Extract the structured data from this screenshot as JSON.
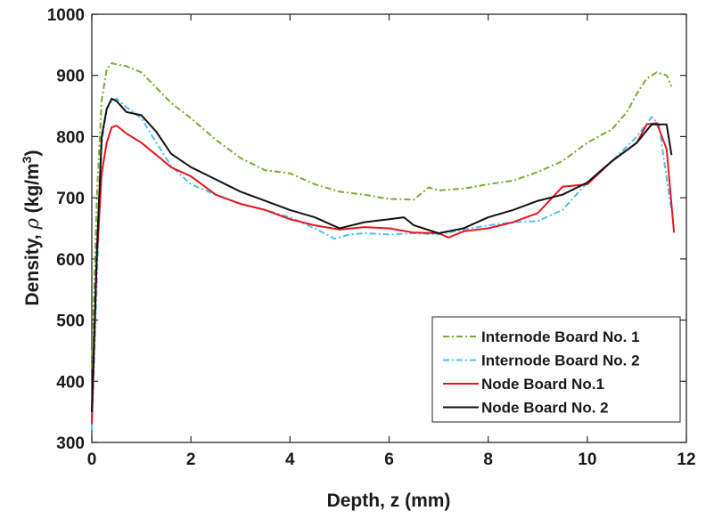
{
  "chart_data": {
    "type": "line",
    "xlabel": "Depth, z (mm)",
    "ylabel_parts": {
      "main": "Density, ",
      "symbol": "ρ",
      "unit": " (kg/m",
      "sup": "3",
      "close": ")"
    },
    "xlim": [
      0,
      12
    ],
    "ylim": [
      300,
      1000
    ],
    "x_ticks": [
      0,
      2,
      4,
      6,
      8,
      10,
      12
    ],
    "y_ticks": [
      300,
      400,
      500,
      600,
      700,
      800,
      900,
      1000
    ],
    "grid": false,
    "legend_position": "lower-right",
    "series": [
      {
        "name": "Internode Board No. 1",
        "color": "#77ac30",
        "dash": "7,3,2,3",
        "x": [
          0,
          0.1,
          0.2,
          0.3,
          0.4,
          0.5,
          0.7,
          1.0,
          1.3,
          1.6,
          2.0,
          2.5,
          3.0,
          3.5,
          4.0,
          4.5,
          5.0,
          5.5,
          6.0,
          6.5,
          6.8,
          7.0,
          7.5,
          8.0,
          8.5,
          9.0,
          9.5,
          10.0,
          10.5,
          10.8,
          11.0,
          11.2,
          11.4,
          11.6,
          11.7
        ],
        "y": [
          420,
          700,
          860,
          910,
          920,
          918,
          915,
          905,
          880,
          855,
          830,
          795,
          765,
          745,
          740,
          722,
          710,
          705,
          698,
          697,
          717,
          712,
          715,
          722,
          728,
          742,
          760,
          790,
          812,
          840,
          870,
          895,
          905,
          900,
          882
        ]
      },
      {
        "name": "Internode Board No. 2",
        "color": "#4dbeee",
        "dash": "7,3,2,3",
        "x": [
          0,
          0.1,
          0.2,
          0.3,
          0.4,
          0.5,
          0.7,
          1.0,
          1.3,
          1.6,
          2.0,
          2.5,
          3.0,
          3.5,
          4.0,
          4.5,
          4.9,
          5.2,
          5.5,
          6.0,
          6.5,
          7.0,
          7.5,
          8.0,
          8.5,
          9.0,
          9.5,
          10.0,
          10.5,
          11.0,
          11.3,
          11.45,
          11.55,
          11.7
        ],
        "y": [
          320,
          560,
          790,
          845,
          858,
          862,
          848,
          830,
          790,
          752,
          722,
          705,
          690,
          680,
          668,
          650,
          633,
          640,
          642,
          640,
          642,
          640,
          648,
          655,
          660,
          662,
          680,
          725,
          760,
          800,
          832,
          820,
          760,
          680
        ]
      },
      {
        "name": "Node Board No.1",
        "color": "#e8141b",
        "dash": "",
        "x": [
          0,
          0.1,
          0.2,
          0.3,
          0.4,
          0.5,
          0.7,
          1.0,
          1.3,
          1.6,
          2.0,
          2.5,
          3.0,
          3.5,
          4.0,
          4.5,
          5.0,
          5.5,
          6.0,
          6.5,
          7.0,
          7.2,
          7.5,
          8.0,
          8.5,
          9.0,
          9.5,
          10.0,
          10.5,
          11.0,
          11.2,
          11.4,
          11.6,
          11.75
        ],
        "y": [
          330,
          600,
          740,
          790,
          815,
          818,
          805,
          790,
          770,
          750,
          735,
          705,
          690,
          680,
          665,
          655,
          648,
          652,
          650,
          643,
          642,
          635,
          645,
          650,
          660,
          675,
          718,
          722,
          760,
          790,
          820,
          822,
          780,
          643
        ]
      },
      {
        "name": "Node Board No. 2",
        "color": "#111111",
        "dash": "",
        "x": [
          0,
          0.1,
          0.2,
          0.3,
          0.4,
          0.5,
          0.7,
          1.0,
          1.3,
          1.6,
          2.0,
          2.5,
          3.0,
          3.5,
          4.0,
          4.5,
          5.0,
          5.5,
          6.0,
          6.3,
          6.5,
          7.0,
          7.5,
          8.0,
          8.5,
          9.0,
          9.5,
          10.0,
          10.5,
          11.0,
          11.3,
          11.6,
          11.7
        ],
        "y": [
          350,
          610,
          800,
          845,
          862,
          858,
          840,
          835,
          808,
          772,
          750,
          730,
          710,
          695,
          680,
          668,
          650,
          660,
          665,
          668,
          655,
          642,
          650,
          668,
          680,
          695,
          705,
          725,
          760,
          790,
          820,
          820,
          770
        ]
      }
    ]
  }
}
